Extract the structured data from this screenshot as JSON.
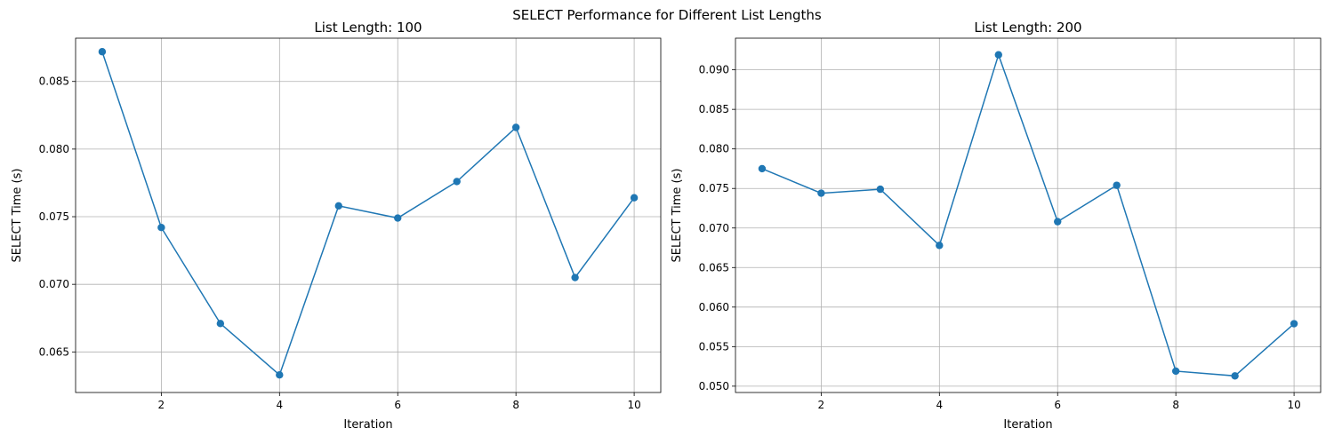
{
  "figure": {
    "title": "SELECT Performance for Different List Lengths"
  },
  "colors": {
    "series": "#1f77b4",
    "grid": "#b0b0b0",
    "axis": "#000000"
  },
  "chart_data": [
    {
      "type": "line",
      "title": "List Length: 100",
      "xlabel": "Iteration",
      "ylabel": "SELECT Time (s)",
      "grid": true,
      "marker": "circle",
      "xlim": [
        0.55,
        10.45
      ],
      "ylim": [
        0.062,
        0.0882
      ],
      "xticks": [
        2,
        4,
        6,
        8,
        10
      ],
      "yticks": [
        0.065,
        0.07,
        0.075,
        0.08,
        0.085
      ],
      "ytick_labels": [
        "0.065",
        "0.070",
        "0.075",
        "0.080",
        "0.085"
      ],
      "x": [
        1,
        2,
        3,
        4,
        5,
        6,
        7,
        8,
        9,
        10
      ],
      "y": [
        0.0872,
        0.0742,
        0.0671,
        0.0633,
        0.0758,
        0.0749,
        0.0776,
        0.0816,
        0.0705,
        0.0764
      ]
    },
    {
      "type": "line",
      "title": "List Length: 200",
      "xlabel": "Iteration",
      "ylabel": "SELECT Time (s)",
      "grid": true,
      "marker": "circle",
      "xlim": [
        0.55,
        10.45
      ],
      "ylim": [
        0.0492,
        0.094
      ],
      "xticks": [
        2,
        4,
        6,
        8,
        10
      ],
      "yticks": [
        0.05,
        0.055,
        0.06,
        0.065,
        0.07,
        0.075,
        0.08,
        0.085,
        0.09
      ],
      "ytick_labels": [
        "0.050",
        "0.055",
        "0.060",
        "0.065",
        "0.070",
        "0.075",
        "0.080",
        "0.085",
        "0.090"
      ],
      "x": [
        1,
        2,
        3,
        4,
        5,
        6,
        7,
        8,
        9,
        10
      ],
      "y": [
        0.0775,
        0.0744,
        0.0749,
        0.0678,
        0.0919,
        0.0708,
        0.0754,
        0.0519,
        0.0513,
        0.0579
      ]
    }
  ]
}
